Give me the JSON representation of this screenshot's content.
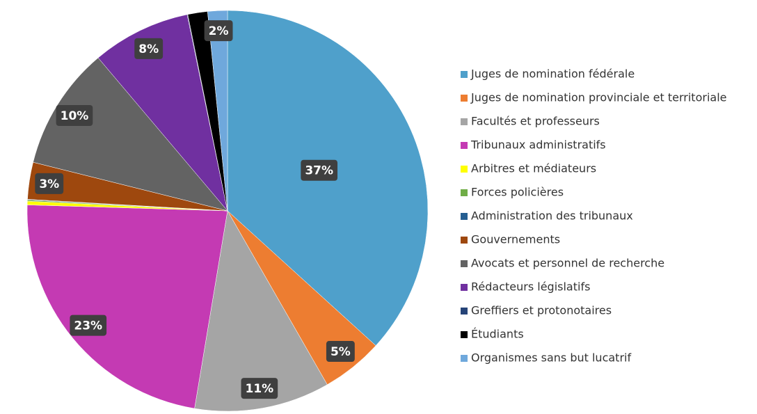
{
  "chart_data": {
    "type": "pie",
    "categories": [
      "Juges de nomination fédérale",
      "Juges de nomination provinciale et territoriale",
      "Facultés et professeurs",
      "Tribunaux administratifs",
      "Arbitres et médiateurs",
      "Forces policières",
      "Administration des tribunaux",
      "Gouvernements",
      "Avocats et personnel de recherche",
      "Rédacteurs législatifs",
      "Greffiers et protonotaires",
      "Étudiants",
      "Organismes sans but lucatrif"
    ],
    "values": [
      37,
      5,
      11,
      23,
      0.3,
      0.1,
      0.05,
      3,
      10,
      8,
      0.05,
      1.6,
      1.6
    ],
    "value_labels": [
      "37%",
      "5%",
      "11%",
      "23%",
      null,
      null,
      null,
      "3%",
      "10%",
      "8%",
      null,
      null,
      "2%"
    ],
    "colors": [
      "#4fa0cb",
      "#ed7d31",
      "#a5a5a5",
      "#c43ab3",
      "#ffff00",
      "#70ad47",
      "#255e91",
      "#9e480e",
      "#636363",
      "#7030a0",
      "#264478",
      "#000000",
      "#6fa8dc"
    ],
    "legend": "right"
  }
}
